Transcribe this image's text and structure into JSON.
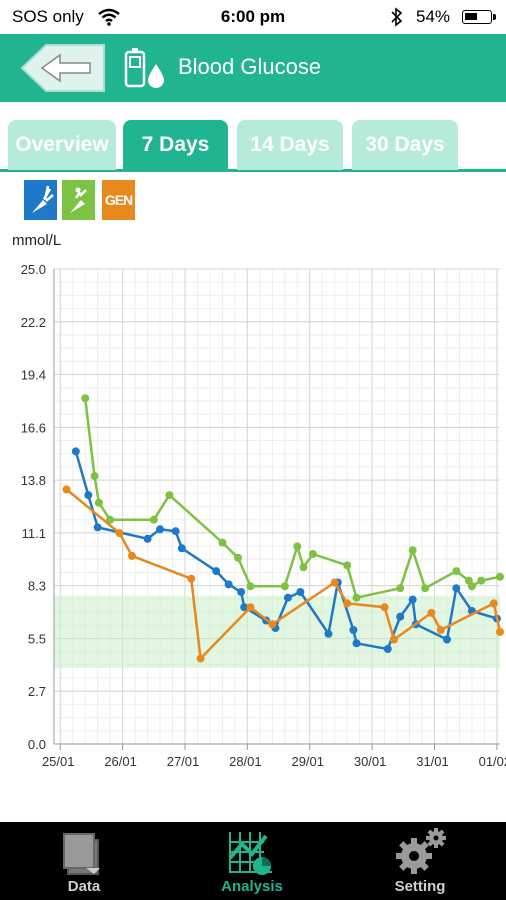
{
  "status_bar": {
    "carrier": "SOS only",
    "time": "6:00 pm",
    "battery_pct": "54%",
    "battery_level": 0.54
  },
  "header": {
    "title": "Blood Glucose",
    "back_icon": "back-arrow-icon",
    "meter_icon": "glucose-meter-icon"
  },
  "tabs": [
    {
      "label": "Overview",
      "active": false
    },
    {
      "label": "7 Days",
      "active": true
    },
    {
      "label": "14 Days",
      "active": false
    },
    {
      "label": "30 Days",
      "active": false
    }
  ],
  "legend": {
    "items": [
      {
        "icon": "before-meal-icon",
        "color": "#1f78c8"
      },
      {
        "icon": "after-meal-icon",
        "color": "#7dc242"
      },
      {
        "icon": "general-icon",
        "label": "GEN",
        "color": "#e8891e"
      }
    ]
  },
  "chart_data": {
    "type": "line",
    "ylabel": "mmol/L",
    "ylim": [
      0,
      25
    ],
    "y_ticks": [
      "0.0",
      "2.7",
      "5.5",
      "8.3",
      "11.1",
      "13.8",
      "16.6",
      "19.4",
      "22.2",
      "25.0"
    ],
    "x_ticks": [
      "25/01",
      "26/01",
      "27/01",
      "28/01",
      "29/01",
      "30/01",
      "31/01",
      "01/02"
    ],
    "xlim": [
      -0.1,
      7.05
    ],
    "target_band": [
      4.0,
      7.8
    ],
    "grid": true,
    "series": [
      {
        "color": "#1f78c8",
        "points": [
          [
            0.25,
            15.4
          ],
          [
            0.45,
            13.1
          ],
          [
            0.6,
            11.4
          ],
          [
            1.4,
            10.8
          ],
          [
            1.6,
            11.3
          ],
          [
            1.85,
            11.2
          ],
          [
            1.95,
            10.3
          ],
          [
            2.5,
            9.1
          ],
          [
            2.7,
            8.4
          ],
          [
            2.9,
            8.0
          ],
          [
            2.95,
            7.2
          ],
          [
            3.3,
            6.5
          ],
          [
            3.45,
            6.1
          ],
          [
            3.65,
            7.7
          ],
          [
            3.85,
            8.0
          ],
          [
            4.3,
            5.8
          ],
          [
            4.45,
            8.5
          ],
          [
            4.7,
            6.0
          ],
          [
            4.75,
            5.3
          ],
          [
            5.25,
            5.0
          ],
          [
            5.45,
            6.7
          ],
          [
            5.65,
            7.6
          ],
          [
            5.7,
            6.3
          ],
          [
            6.2,
            5.5
          ],
          [
            6.35,
            8.2
          ],
          [
            6.6,
            7.0
          ],
          [
            7.0,
            6.6
          ]
        ]
      },
      {
        "color": "#7dc242",
        "points": [
          [
            0.4,
            18.2
          ],
          [
            0.55,
            14.1
          ],
          [
            0.62,
            12.7
          ],
          [
            0.8,
            11.8
          ],
          [
            1.5,
            11.8
          ],
          [
            1.75,
            13.1
          ],
          [
            2.6,
            10.6
          ],
          [
            2.85,
            9.8
          ],
          [
            3.05,
            8.3
          ],
          [
            3.6,
            8.3
          ],
          [
            3.8,
            10.4
          ],
          [
            3.9,
            9.3
          ],
          [
            4.05,
            10.0
          ],
          [
            4.6,
            9.4
          ],
          [
            4.75,
            7.7
          ],
          [
            5.45,
            8.2
          ],
          [
            5.65,
            10.2
          ],
          [
            5.85,
            8.2
          ],
          [
            6.35,
            9.1
          ],
          [
            6.55,
            8.6
          ],
          [
            6.6,
            8.3
          ],
          [
            6.75,
            8.6
          ],
          [
            7.05,
            8.8
          ]
        ]
      },
      {
        "color": "#e8891e",
        "points": [
          [
            0.1,
            13.4
          ],
          [
            0.95,
            11.1
          ],
          [
            1.15,
            9.9
          ],
          [
            2.1,
            8.7
          ],
          [
            2.25,
            4.5
          ],
          [
            3.05,
            7.2
          ],
          [
            3.4,
            6.3
          ],
          [
            4.4,
            8.5
          ],
          [
            4.6,
            7.4
          ],
          [
            5.2,
            7.2
          ],
          [
            5.35,
            5.5
          ],
          [
            5.95,
            6.9
          ],
          [
            6.1,
            6.0
          ],
          [
            6.95,
            7.4
          ],
          [
            7.05,
            5.9
          ]
        ]
      }
    ]
  },
  "bottom_nav": [
    {
      "label": "Data",
      "icon": "data-icon",
      "active": false
    },
    {
      "label": "Analysis",
      "icon": "analysis-icon",
      "active": true
    },
    {
      "label": "Setting",
      "icon": "gear-icon",
      "active": false
    }
  ]
}
